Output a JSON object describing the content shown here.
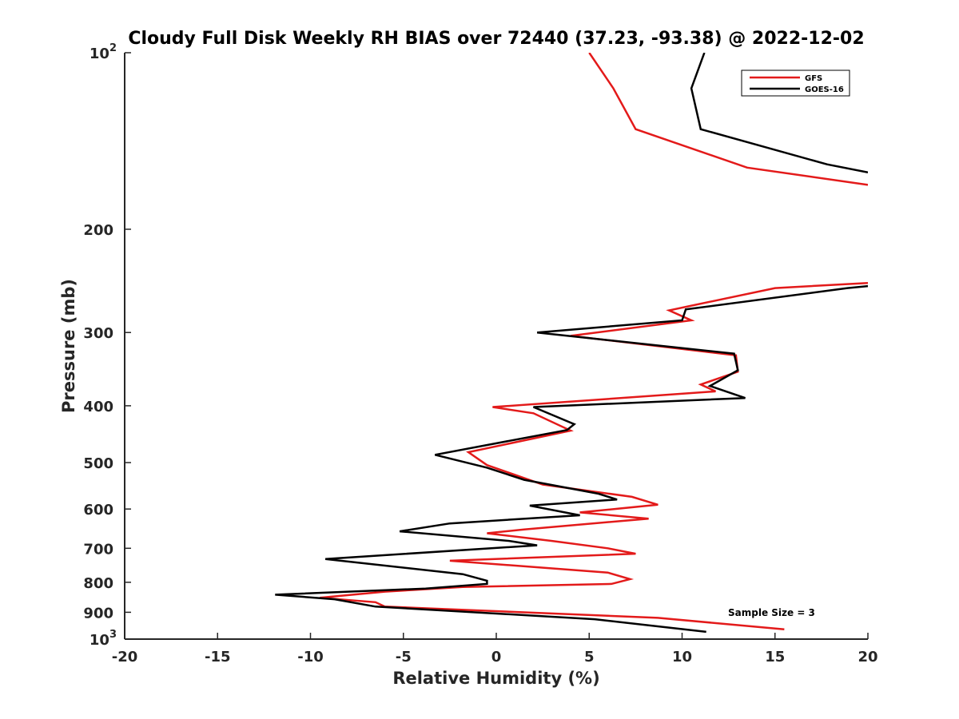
{
  "chart_data": {
    "type": "line",
    "title": "Cloudy Full Disk Weekly RH BIAS over 72440 (37.23, -93.38) @ 2022-12-02",
    "xlabel": "Relative Humidity (%)",
    "ylabel": "Pressure (mb)",
    "xlim": [
      -20,
      20
    ],
    "ylim": [
      100,
      1000
    ],
    "yscale": "log",
    "y_reversed": true,
    "grid": false,
    "legend_position": "top-right",
    "x_ticks": [
      "-20",
      "-15",
      "-10",
      "-5",
      "0",
      "5",
      "10",
      "15",
      "20"
    ],
    "y_ticks": [
      {
        "value": 100,
        "label": "10",
        "sup": "2"
      },
      {
        "value": 200,
        "label": "200",
        "sup": ""
      },
      {
        "value": 300,
        "label": "300",
        "sup": ""
      },
      {
        "value": 400,
        "label": "400",
        "sup": ""
      },
      {
        "value": 500,
        "label": "500",
        "sup": ""
      },
      {
        "value": 600,
        "label": "600",
        "sup": ""
      },
      {
        "value": 700,
        "label": "700",
        "sup": ""
      },
      {
        "value": 800,
        "label": "800",
        "sup": ""
      },
      {
        "value": 900,
        "label": "900",
        "sup": ""
      },
      {
        "value": 1000,
        "label": "10",
        "sup": "3"
      }
    ],
    "annotation": "Sample Size = 3",
    "series": [
      {
        "name": "GFS",
        "color": "#e31a1a",
        "points": [
          [
            5.0,
            100
          ],
          [
            6.3,
            115
          ],
          [
            7.5,
            135
          ],
          [
            13.5,
            157
          ],
          [
            20.0,
            168
          ],
          null,
          [
            20.0,
            247
          ],
          [
            15.0,
            252
          ],
          [
            9.3,
            275
          ],
          [
            10.5,
            286
          ],
          [
            4.0,
            304
          ],
          [
            12.9,
            328
          ],
          [
            13.0,
            350
          ],
          [
            11.0,
            368
          ],
          [
            11.8,
            378
          ],
          [
            -0.2,
            402
          ],
          [
            2.0,
            412
          ],
          [
            4.0,
            441
          ],
          [
            -1.5,
            480
          ],
          [
            -0.5,
            505
          ],
          [
            2.5,
            545
          ],
          [
            7.3,
            572
          ],
          [
            8.7,
            590
          ],
          [
            4.5,
            608
          ],
          [
            8.2,
            623
          ],
          [
            1.5,
            650
          ],
          [
            -0.5,
            660
          ],
          [
            3.0,
            680
          ],
          [
            6.0,
            700
          ],
          [
            7.5,
            715
          ],
          [
            -2.5,
            735
          ],
          [
            6.0,
            770
          ],
          [
            7.2,
            790
          ],
          [
            6.2,
            805
          ],
          [
            -1.8,
            815
          ],
          [
            -6.0,
            830
          ],
          [
            -9.5,
            850
          ],
          [
            -6.5,
            865
          ],
          [
            -6.0,
            880
          ],
          [
            8.7,
            920
          ],
          [
            15.5,
            962
          ]
        ]
      },
      {
        "name": "GOES-16",
        "color": "#000000",
        "points": [
          [
            11.2,
            100
          ],
          [
            10.5,
            115
          ],
          [
            11.0,
            135
          ],
          [
            17.8,
            155
          ],
          [
            20.0,
            160
          ],
          null,
          [
            20.0,
            250
          ],
          [
            18.9,
            252
          ],
          [
            10.2,
            274
          ],
          [
            10.0,
            286
          ],
          [
            2.2,
            300
          ],
          [
            12.8,
            326
          ],
          [
            13.0,
            348
          ],
          [
            11.5,
            370
          ],
          [
            13.4,
            388
          ],
          [
            2.0,
            402
          ],
          [
            4.2,
            430
          ],
          [
            3.8,
            440
          ],
          [
            -3.3,
            485
          ],
          [
            -0.5,
            510
          ],
          [
            1.5,
            535
          ],
          [
            5.5,
            565
          ],
          [
            6.5,
            578
          ],
          [
            1.8,
            592
          ],
          [
            4.5,
            615
          ],
          [
            -2.5,
            635
          ],
          [
            -5.2,
            655
          ],
          [
            0.7,
            680
          ],
          [
            2.2,
            692
          ],
          [
            -9.2,
            730
          ],
          [
            -1.8,
            775
          ],
          [
            -0.5,
            795
          ],
          [
            -0.5,
            805
          ],
          [
            -3.8,
            820
          ],
          [
            -11.9,
            840
          ],
          [
            -8.7,
            855
          ],
          [
            -6.5,
            880
          ],
          [
            5.3,
            925
          ],
          [
            11.3,
            972
          ]
        ]
      }
    ]
  }
}
